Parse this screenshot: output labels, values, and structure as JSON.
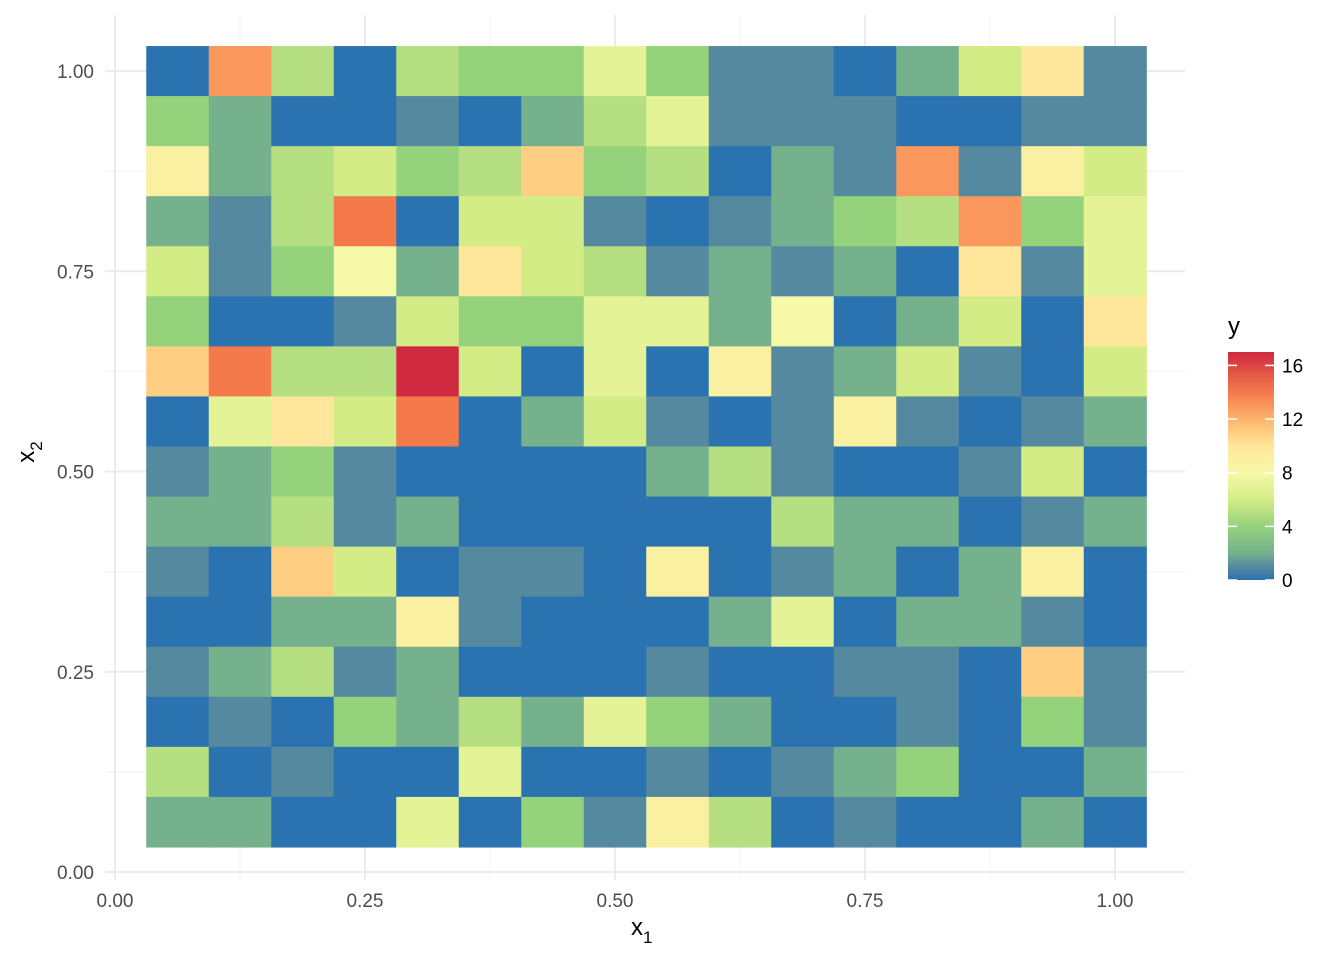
{
  "chart_data": {
    "type": "heatmap",
    "title": "",
    "xlabel": {
      "base": "x",
      "sub": "1"
    },
    "ylabel": {
      "base": "x",
      "sub": "2"
    },
    "xlim": [
      -0.01,
      1.07
    ],
    "ylim": [
      -0.01,
      1.07
    ],
    "x_ticks": [
      0.0,
      0.25,
      0.5,
      0.75,
      1.0
    ],
    "x_tick_labels": [
      "0.00",
      "0.25",
      "0.50",
      "0.75",
      "1.00"
    ],
    "y_ticks": [
      0.0,
      0.25,
      0.5,
      0.75,
      1.0
    ],
    "y_tick_labels": [
      "0.00",
      "0.25",
      "0.50",
      "0.75",
      "1.00"
    ],
    "grid": true,
    "cell_size": 0.0625,
    "x": [
      0.0625,
      0.125,
      0.1875,
      0.25,
      0.3125,
      0.375,
      0.4375,
      0.5,
      0.5625,
      0.625,
      0.6875,
      0.75,
      0.8125,
      0.875,
      0.9375,
      1.0
    ],
    "y": [
      1.0,
      0.9375,
      0.875,
      0.8125,
      0.75,
      0.6875,
      0.625,
      0.5625,
      0.5,
      0.4375,
      0.375,
      0.3125,
      0.25,
      0.1875,
      0.125,
      0.0625
    ],
    "values": [
      [
        0,
        13,
        5,
        0,
        5,
        4,
        4,
        7,
        4,
        1,
        1,
        0,
        2,
        6,
        10,
        1
      ],
      [
        4,
        2,
        0,
        0,
        1,
        0,
        2,
        5,
        7,
        1,
        1,
        1,
        0,
        0,
        1,
        1
      ],
      [
        9,
        2,
        5,
        6,
        4,
        5,
        11,
        4,
        5,
        0,
        2,
        1,
        13,
        1,
        9,
        6
      ],
      [
        2,
        1,
        5,
        14,
        0,
        6,
        6,
        1,
        0,
        1,
        2,
        4,
        5,
        13,
        4,
        7
      ],
      [
        6,
        1,
        4,
        8,
        2,
        10,
        6,
        5,
        1,
        2,
        1,
        2,
        0,
        10,
        1,
        7
      ],
      [
        4,
        0,
        0,
        1,
        6,
        4,
        4,
        7,
        7,
        2,
        8,
        0,
        2,
        6,
        0,
        10
      ],
      [
        11,
        14,
        5,
        5,
        17,
        6,
        0,
        7,
        0,
        9,
        1,
        2,
        6,
        1,
        0,
        6
      ],
      [
        0,
        7,
        10,
        6,
        14,
        0,
        2,
        6,
        1,
        0,
        1,
        9,
        1,
        0,
        1,
        2
      ],
      [
        1,
        2,
        4,
        1,
        0,
        0,
        0,
        0,
        2,
        5,
        1,
        0,
        0,
        1,
        6,
        0
      ],
      [
        2,
        2,
        5,
        1,
        2,
        0,
        0,
        0,
        0,
        0,
        5,
        2,
        2,
        0,
        1,
        2
      ],
      [
        1,
        0,
        11,
        6,
        0,
        1,
        1,
        0,
        9,
        0,
        1,
        2,
        0,
        2,
        9,
        0
      ],
      [
        0,
        0,
        2,
        2,
        9,
        1,
        0,
        0,
        0,
        2,
        7,
        0,
        2,
        2,
        1,
        0
      ],
      [
        1,
        2,
        5,
        1,
        2,
        0,
        0,
        0,
        1,
        0,
        0,
        1,
        1,
        0,
        11,
        1
      ],
      [
        0,
        1,
        0,
        4,
        2,
        5,
        2,
        7,
        4,
        2,
        0,
        0,
        1,
        0,
        4,
        1
      ],
      [
        5,
        0,
        1,
        0,
        0,
        7,
        0,
        0,
        1,
        0,
        1,
        2,
        4,
        0,
        0,
        2
      ],
      [
        2,
        2,
        0,
        0,
        7,
        0,
        4,
        1,
        9,
        5,
        0,
        1,
        0,
        0,
        2,
        0
      ]
    ],
    "colorscale": {
      "name": "y",
      "min": 0,
      "max": 17,
      "ticks": [
        0,
        4,
        8,
        12,
        16
      ],
      "tick_labels": [
        "0",
        "4",
        "8",
        "12",
        "16"
      ],
      "stops": [
        [
          0,
          "#2b72b0"
        ],
        [
          1,
          "#5589a0"
        ],
        [
          2,
          "#74b18c"
        ],
        [
          4,
          "#95d27c"
        ],
        [
          6,
          "#d4ec86"
        ],
        [
          8,
          "#f6f9a8"
        ],
        [
          10,
          "#fee79a"
        ],
        [
          12,
          "#fdb46c"
        ],
        [
          14,
          "#f47a4c"
        ],
        [
          17,
          "#cf2a3f"
        ]
      ]
    }
  }
}
